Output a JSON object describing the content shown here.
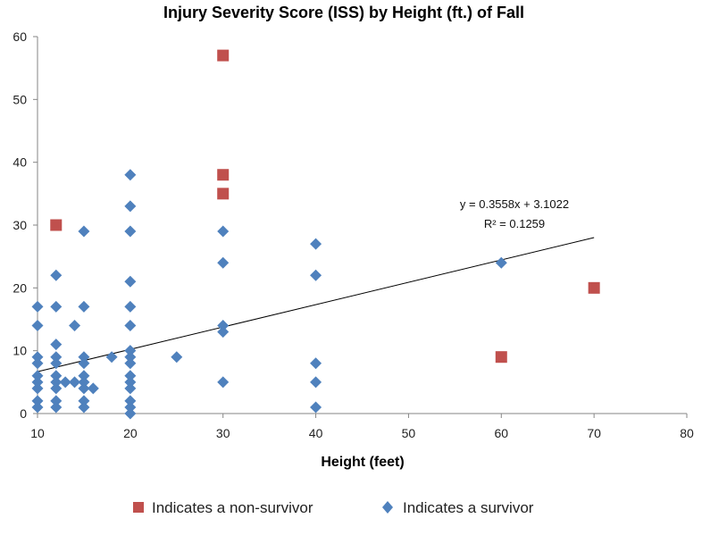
{
  "chart_data": {
    "type": "scatter",
    "title": "Injury Severity Score (ISS) by Height (ft.) of Fall",
    "xlabel": "Height (feet)",
    "ylabel": "",
    "xlim": [
      10,
      80
    ],
    "ylim": [
      0,
      60
    ],
    "x_ticks": [
      "10",
      "20",
      "30",
      "40",
      "50",
      "60",
      "70",
      "80"
    ],
    "y_ticks": [
      "0",
      "10",
      "20",
      "30",
      "40",
      "50",
      "60"
    ],
    "series": [
      {
        "name": "Indicates a non-survivor",
        "marker": "square",
        "color": "#c0504d",
        "points": [
          [
            12,
            30
          ],
          [
            30,
            57
          ],
          [
            30,
            38
          ],
          [
            30,
            35
          ],
          [
            60,
            9
          ],
          [
            70,
            20
          ]
        ]
      },
      {
        "name": "Indicates a survivor",
        "marker": "diamond",
        "color": "#4f81bd",
        "points": [
          [
            10,
            17
          ],
          [
            10,
            14
          ],
          [
            10,
            9
          ],
          [
            10,
            8
          ],
          [
            10,
            6
          ],
          [
            10,
            5
          ],
          [
            10,
            4
          ],
          [
            10,
            2
          ],
          [
            10,
            1
          ],
          [
            12,
            22
          ],
          [
            12,
            17
          ],
          [
            12,
            11
          ],
          [
            12,
            9
          ],
          [
            12,
            8
          ],
          [
            12,
            6
          ],
          [
            12,
            5
          ],
          [
            12,
            4
          ],
          [
            12,
            2
          ],
          [
            12,
            1
          ],
          [
            13,
            5
          ],
          [
            14,
            14
          ],
          [
            14,
            5
          ],
          [
            15,
            29
          ],
          [
            15,
            17
          ],
          [
            15,
            9
          ],
          [
            15,
            8
          ],
          [
            15,
            6
          ],
          [
            15,
            5
          ],
          [
            15,
            4
          ],
          [
            15,
            2
          ],
          [
            15,
            1
          ],
          [
            16,
            4
          ],
          [
            18,
            9
          ],
          [
            20,
            38
          ],
          [
            20,
            33
          ],
          [
            20,
            29
          ],
          [
            20,
            21
          ],
          [
            20,
            17
          ],
          [
            20,
            14
          ],
          [
            20,
            10
          ],
          [
            20,
            9
          ],
          [
            20,
            8
          ],
          [
            20,
            6
          ],
          [
            20,
            5
          ],
          [
            20,
            4
          ],
          [
            20,
            2
          ],
          [
            20,
            1
          ],
          [
            20,
            0
          ],
          [
            25,
            9
          ],
          [
            30,
            29
          ],
          [
            30,
            24
          ],
          [
            30,
            14
          ],
          [
            30,
            13
          ],
          [
            30,
            5
          ],
          [
            40,
            27
          ],
          [
            40,
            22
          ],
          [
            40,
            8
          ],
          [
            40,
            5
          ],
          [
            40,
            1
          ],
          [
            60,
            24
          ]
        ]
      }
    ],
    "trendline": {
      "slope": 0.3558,
      "intercept": 3.1022,
      "x_range": [
        10,
        70
      ],
      "equation": "y = 0.3558x + 3.1022",
      "r_squared": "R² = 0.1259"
    },
    "legend_position": "bottom"
  }
}
